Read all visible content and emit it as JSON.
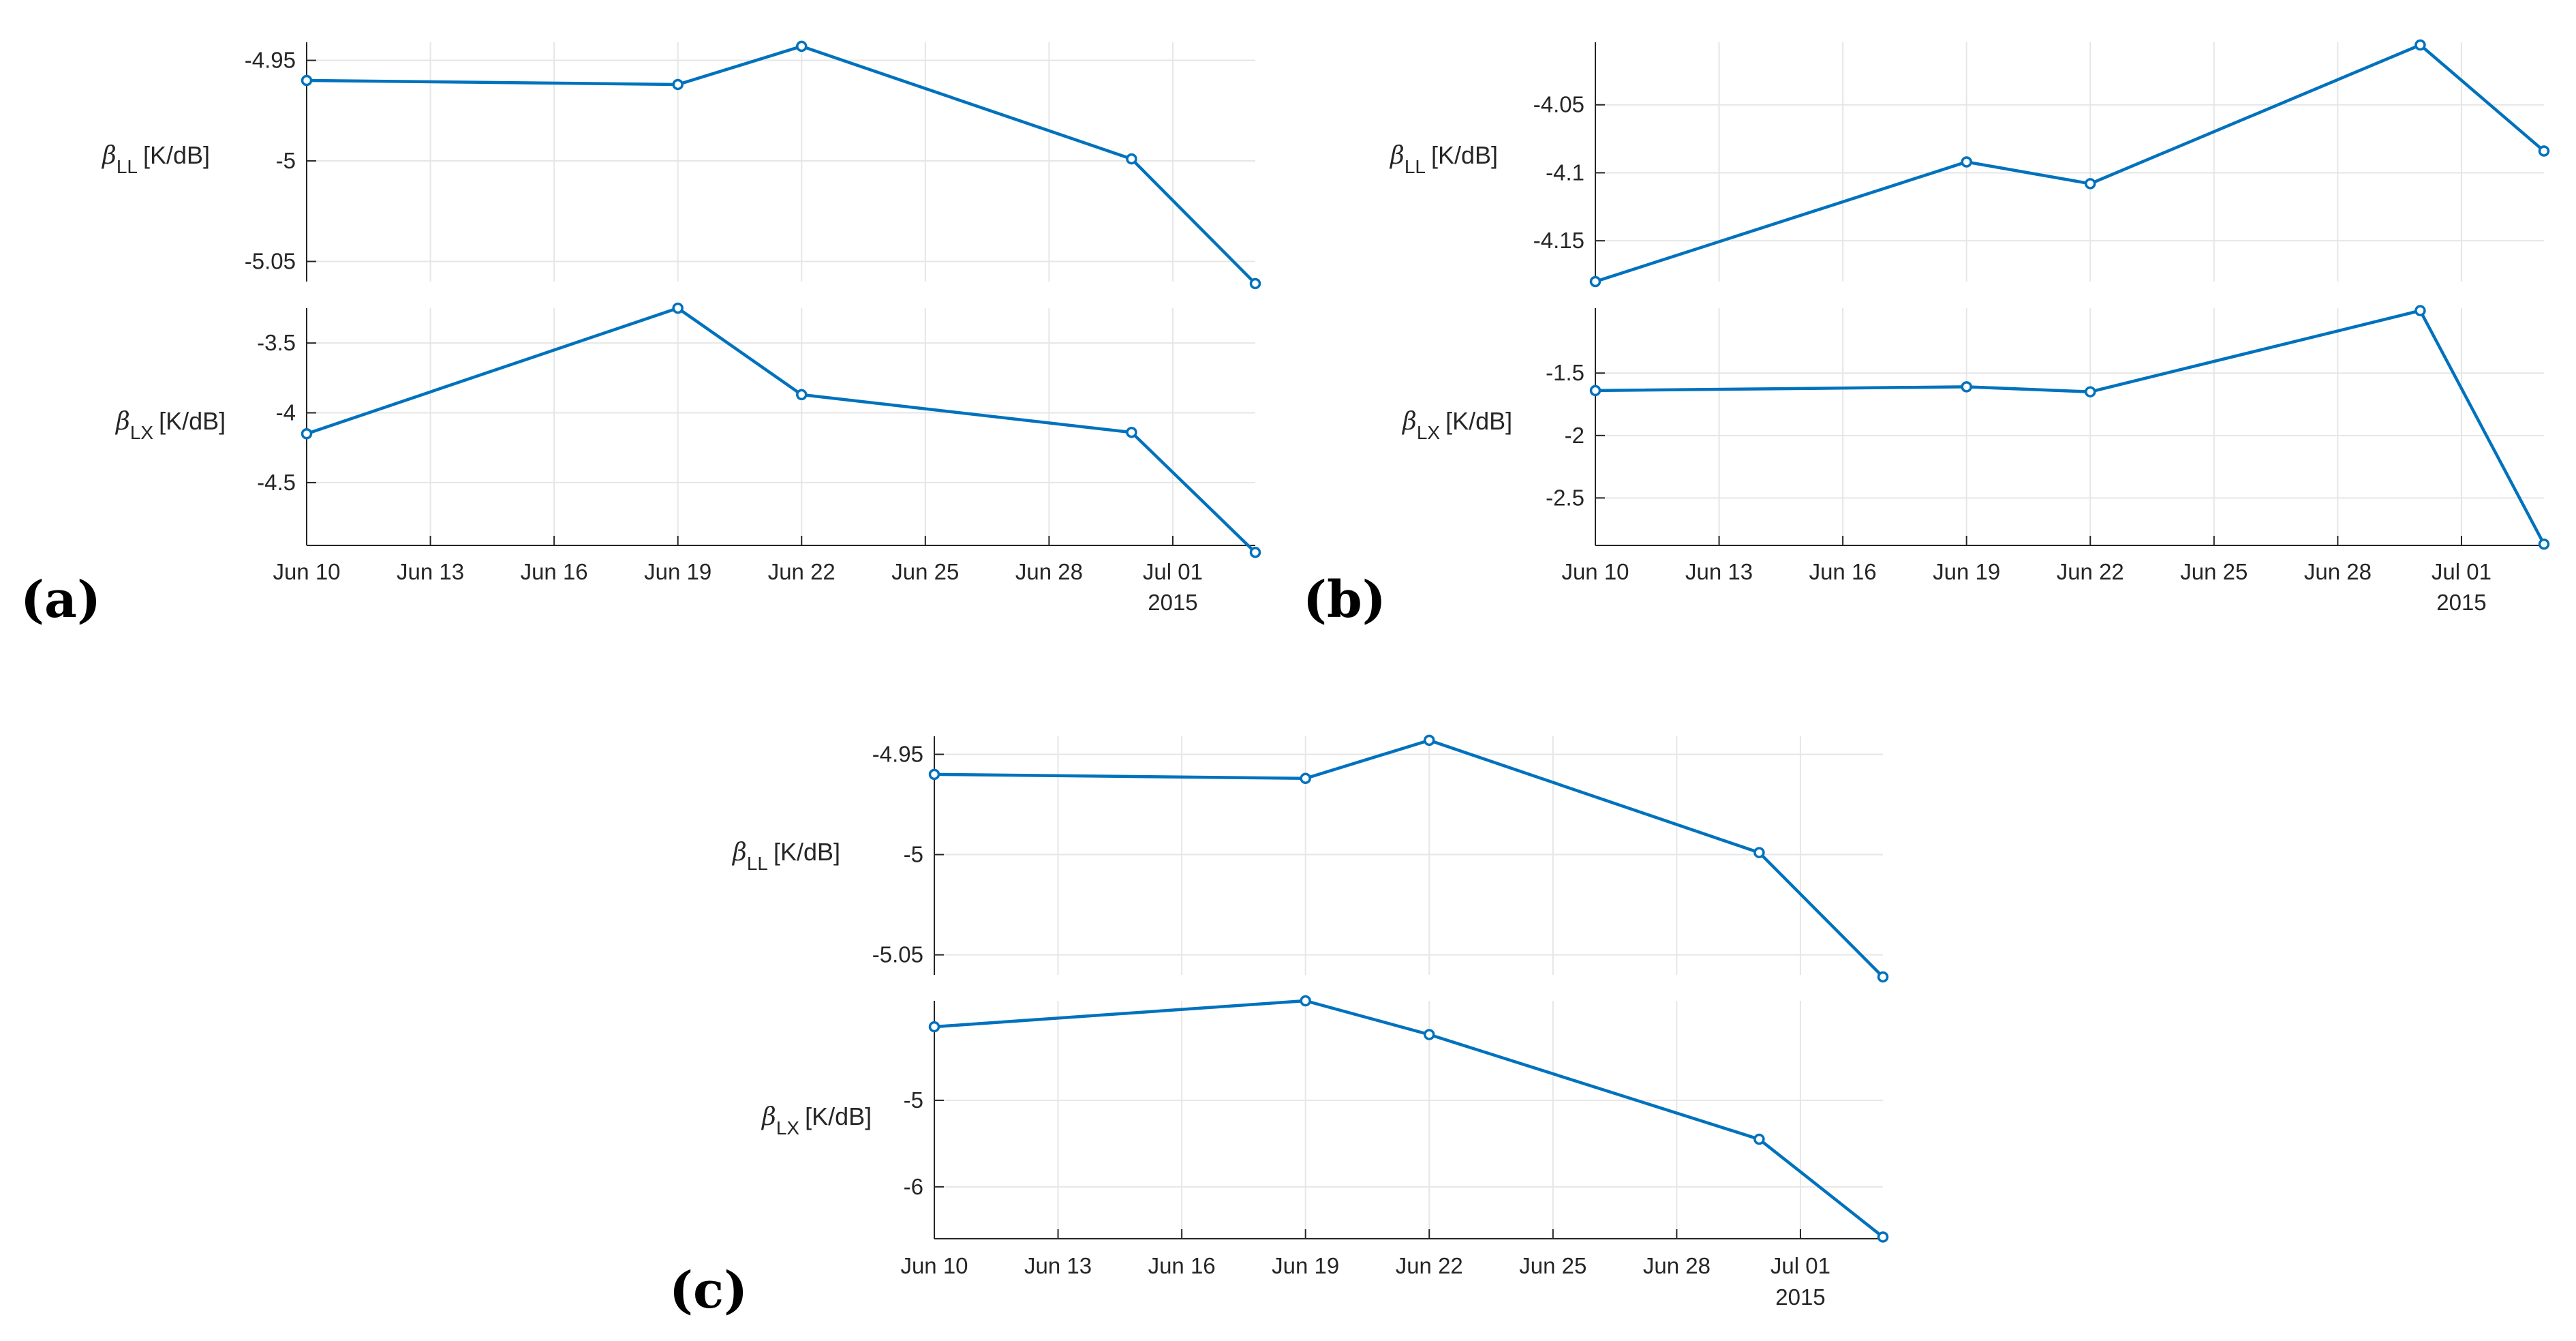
{
  "chart_data": [
    {
      "type": "line",
      "panel": "(a)",
      "x_ticks": [
        "Jun 10",
        "Jun 13",
        "Jun 16",
        "Jun 19",
        "Jun 22",
        "Jun 25",
        "Jun 28",
        "Jul 01"
      ],
      "x_year": "2015",
      "x": [
        "Jun 10",
        "Jun 19",
        "Jun 22",
        "Jun 30",
        "Jul 03"
      ],
      "x_day": [
        10,
        19,
        22,
        30,
        33
      ],
      "xlim": [
        10,
        33
      ],
      "subplots": [
        {
          "ylabel_symbol": "β",
          "ylabel_sub": "LL",
          "ylabel_unit": "[K/dB]",
          "values": [
            -4.96,
            -4.962,
            -4.943,
            -4.999,
            -5.061
          ],
          "ylim": [
            -5.06,
            -4.941
          ],
          "yticks": [
            -4.95,
            -5,
            -5.05
          ],
          "ytick_labels": [
            "-4.95",
            "-5",
            "-5.05"
          ]
        },
        {
          "ylabel_symbol": "β",
          "ylabel_sub": "LX",
          "ylabel_unit": "[K/dB]",
          "values": [
            -4.15,
            -3.25,
            -3.87,
            -4.14,
            -5.0
          ],
          "ylim": [
            -4.95,
            -3.25
          ],
          "yticks": [
            -3.5,
            -4,
            -4.5
          ],
          "ytick_labels": [
            "-3.5",
            "-4",
            "-4.5"
          ]
        }
      ]
    },
    {
      "type": "line",
      "panel": "(b)",
      "x_ticks": [
        "Jun 10",
        "Jun 13",
        "Jun 16",
        "Jun 19",
        "Jun 22",
        "Jun 25",
        "Jun 28",
        "Jul 01"
      ],
      "x_year": "2015",
      "x": [
        "Jun 10",
        "Jun 19",
        "Jun 22",
        "Jun 30",
        "Jul 03"
      ],
      "x_day": [
        10,
        19,
        22,
        30,
        33
      ],
      "xlim": [
        10,
        33
      ],
      "subplots": [
        {
          "ylabel_symbol": "β",
          "ylabel_sub": "LL",
          "ylabel_unit": "[K/dB]",
          "values": [
            -4.18,
            -4.092,
            -4.108,
            -4.006,
            -4.084
          ],
          "ylim": [
            -4.18,
            -4.004
          ],
          "yticks": [
            -4.05,
            -4.1,
            -4.15
          ],
          "ytick_labels": [
            "-4.05",
            "-4.1",
            "-4.15"
          ]
        },
        {
          "ylabel_symbol": "β",
          "ylabel_sub": "LX",
          "ylabel_unit": "[K/dB]",
          "values": [
            -1.64,
            -1.61,
            -1.65,
            -1.0,
            -2.87
          ],
          "ylim": [
            -2.88,
            -0.98
          ],
          "yticks": [
            -1.5,
            -2,
            -2.5
          ],
          "ytick_labels": [
            "-1.5",
            "-2",
            "-2.5"
          ]
        }
      ]
    },
    {
      "type": "line",
      "panel": "(c)",
      "x_ticks": [
        "Jun 10",
        "Jun 13",
        "Jun 16",
        "Jun 19",
        "Jun 22",
        "Jun 25",
        "Jun 28",
        "Jul 01"
      ],
      "x_year": "2015",
      "x": [
        "Jun 10",
        "Jun 19",
        "Jun 22",
        "Jun 30",
        "Jul 03"
      ],
      "x_day": [
        10,
        19,
        22,
        30,
        33
      ],
      "xlim": [
        10,
        33
      ],
      "subplots": [
        {
          "ylabel_symbol": "β",
          "ylabel_sub": "LL",
          "ylabel_unit": "[K/dB]",
          "values": [
            -4.96,
            -4.962,
            -4.943,
            -4.999,
            -5.061
          ],
          "ylim": [
            -5.06,
            -4.941
          ],
          "yticks": [
            -4.95,
            -5,
            -5.05
          ],
          "ytick_labels": [
            "-4.95",
            "-5",
            "-5.05"
          ]
        },
        {
          "ylabel_symbol": "β",
          "ylabel_sub": "LX",
          "ylabel_unit": "[K/dB]",
          "values": [
            -4.15,
            -3.85,
            -4.24,
            -5.45,
            -6.58
          ],
          "ylim": [
            -6.6,
            -3.85
          ],
          "yticks": [
            -5,
            -6
          ],
          "ytick_labels": [
            "-5",
            "-6"
          ]
        }
      ]
    }
  ]
}
